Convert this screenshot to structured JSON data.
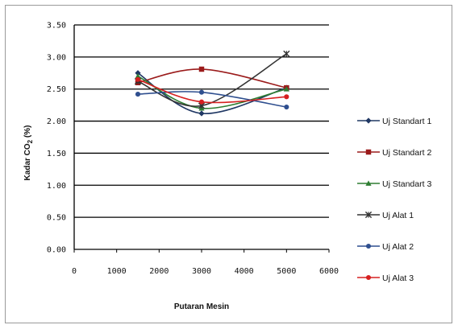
{
  "chart_data": {
    "type": "line",
    "xlabel": "Putaran Mesin",
    "ylabel": "Kadar CO",
    "ylabel_sub": "2",
    "ylabel_unit": " (%)",
    "xlim": [
      0,
      6000
    ],
    "ylim": [
      0,
      3.5
    ],
    "x_ticks": [
      0,
      1000,
      2000,
      3000,
      4000,
      5000,
      6000
    ],
    "x_tick_labels": [
      "0",
      "1000",
      "2000",
      "3000",
      "4000",
      "5000",
      "6000"
    ],
    "y_ticks": [
      0,
      0.5,
      1.0,
      1.5,
      2.0,
      2.5,
      3.0,
      3.5
    ],
    "y_tick_labels": [
      "0.00",
      "0.50",
      "1.00",
      "1.50",
      "2.00",
      "2.50",
      "3.00",
      "3.50"
    ],
    "grid": "horizontal",
    "legend_position": "right",
    "x": [
      1500,
      3000,
      5000
    ],
    "series": [
      {
        "name": "Uj Standart 1",
        "values": [
          2.75,
          2.12,
          2.52
        ],
        "color": "#203864",
        "marker": "diamond"
      },
      {
        "name": "Uj Standart 2",
        "values": [
          2.6,
          2.81,
          2.52
        ],
        "color": "#9b1b1b",
        "marker": "square"
      },
      {
        "name": "Uj Standart 3",
        "values": [
          2.7,
          2.2,
          2.5
        ],
        "color": "#2e7d32",
        "marker": "triangle"
      },
      {
        "name": "Uj Alat 1",
        "values": [
          2.62,
          2.24,
          3.05
        ],
        "color": "#333333",
        "marker": "cross"
      },
      {
        "name": "Uj Alat 2",
        "values": [
          2.42,
          2.45,
          2.22
        ],
        "color": "#2f4f8f",
        "marker": "circle"
      },
      {
        "name": "Uj Alat 3",
        "values": [
          2.65,
          2.3,
          2.38
        ],
        "color": "#d62020",
        "marker": "circle"
      }
    ]
  }
}
